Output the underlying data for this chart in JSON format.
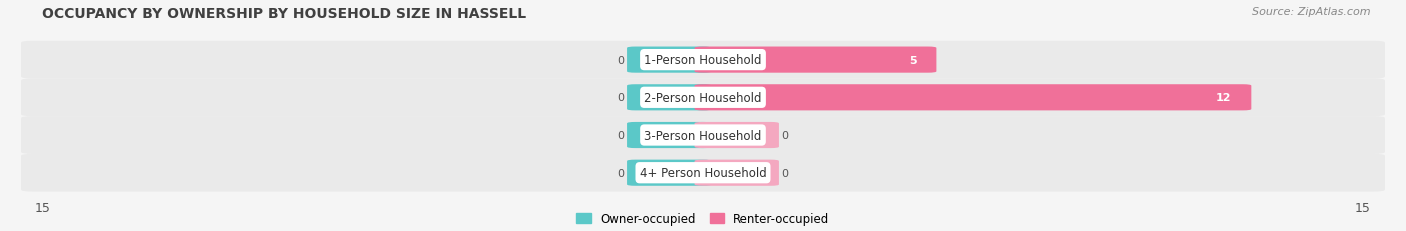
{
  "title": "OCCUPANCY BY OWNERSHIP BY HOUSEHOLD SIZE IN HASSELL",
  "source": "Source: ZipAtlas.com",
  "categories": [
    "1-Person Household",
    "2-Person Household",
    "3-Person Household",
    "4+ Person Household"
  ],
  "owner_values": [
    0,
    0,
    0,
    0
  ],
  "renter_values": [
    5,
    12,
    0,
    0
  ],
  "xlim": 15,
  "owner_color": "#5BC8C8",
  "renter_color": "#F07099",
  "renter_color_light": "#F4A8C0",
  "background_color": "#f5f5f5",
  "row_bg_light": "#ebebeb",
  "row_bg_dark": "#e0e0e0",
  "title_fontsize": 10,
  "source_fontsize": 8,
  "tick_fontsize": 9,
  "bar_label_fontsize": 8,
  "cat_label_fontsize": 8.5,
  "legend_fontsize": 8.5,
  "legend_owner": "Owner-occupied",
  "legend_renter": "Renter-occupied"
}
